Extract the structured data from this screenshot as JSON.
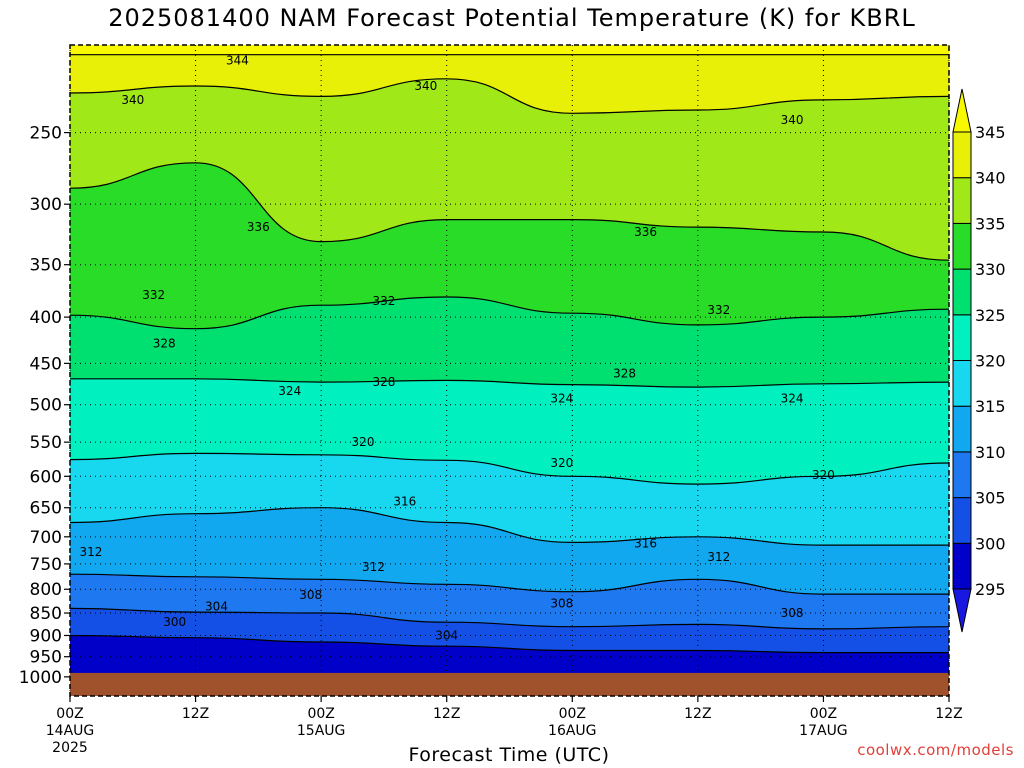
{
  "chart_data": {
    "type": "heatmap",
    "title": "2025081400 NAM Forecast Potential Temperature (K) for KBRL",
    "xlabel": "Forecast Time (UTC)",
    "ylabel": "",
    "credit": "coolwx.com/models",
    "y_axis": {
      "scale": "log-pressure",
      "reversed": true,
      "range": [
        1050,
        200
      ],
      "ticks": [
        250,
        300,
        350,
        400,
        450,
        500,
        550,
        600,
        650,
        700,
        750,
        800,
        850,
        900,
        950,
        1000
      ]
    },
    "x_axis": {
      "range_hours": [
        0,
        84
      ],
      "ticks": [
        {
          "hour": 0,
          "lines": [
            "00Z",
            "14AUG",
            "2025"
          ]
        },
        {
          "hour": 12,
          "lines": [
            "12Z"
          ]
        },
        {
          "hour": 24,
          "lines": [
            "00Z",
            "15AUG"
          ]
        },
        {
          "hour": 36,
          "lines": [
            "12Z"
          ]
        },
        {
          "hour": 48,
          "lines": [
            "00Z",
            "16AUG"
          ]
        },
        {
          "hour": 60,
          "lines": [
            "12Z"
          ]
        },
        {
          "hour": 72,
          "lines": [
            "00Z",
            "17AUG"
          ]
        },
        {
          "hour": 84,
          "lines": [
            "12Z"
          ]
        }
      ]
    },
    "grid": true,
    "ground_level_hPa": 990,
    "colorbar": {
      "levels": [
        295,
        300,
        305,
        310,
        315,
        320,
        325,
        330,
        335,
        340,
        345
      ],
      "colors": [
        "#1818e0",
        "#0000c8",
        "#1450e6",
        "#1e78f0",
        "#12a8f0",
        "#18d8f0",
        "#00f0c0",
        "#00e070",
        "#28dc28",
        "#a0e818",
        "#e8f008",
        "#f8f800"
      ],
      "extend": "both"
    },
    "contour_interval_K": 4,
    "contour_labels": [
      {
        "value": 344,
        "hour": 16,
        "p": 208
      },
      {
        "value": 340,
        "hour": 6,
        "p": 230
      },
      {
        "value": 340,
        "hour": 34,
        "p": 222
      },
      {
        "value": 340,
        "hour": 69,
        "p": 242
      },
      {
        "value": 336,
        "hour": 18,
        "p": 318
      },
      {
        "value": 336,
        "hour": 55,
        "p": 322
      },
      {
        "value": 332,
        "hour": 8,
        "p": 378
      },
      {
        "value": 332,
        "hour": 30,
        "p": 384
      },
      {
        "value": 332,
        "hour": 62,
        "p": 393
      },
      {
        "value": 328,
        "hour": 9,
        "p": 428
      },
      {
        "value": 328,
        "hour": 30,
        "p": 472
      },
      {
        "value": 328,
        "hour": 53,
        "p": 462
      },
      {
        "value": 324,
        "hour": 21,
        "p": 483
      },
      {
        "value": 324,
        "hour": 47,
        "p": 492
      },
      {
        "value": 324,
        "hour": 69,
        "p": 492
      },
      {
        "value": 320,
        "hour": 28,
        "p": 550
      },
      {
        "value": 320,
        "hour": 47,
        "p": 580
      },
      {
        "value": 320,
        "hour": 72,
        "p": 598
      },
      {
        "value": 316,
        "hour": 32,
        "p": 640
      },
      {
        "value": 316,
        "hour": 55,
        "p": 712
      },
      {
        "value": 312,
        "hour": 2,
        "p": 728
      },
      {
        "value": 312,
        "hour": 29,
        "p": 756
      },
      {
        "value": 312,
        "hour": 62,
        "p": 737
      },
      {
        "value": 308,
        "hour": 23,
        "p": 812
      },
      {
        "value": 308,
        "hour": 47,
        "p": 830
      },
      {
        "value": 308,
        "hour": 69,
        "p": 850
      },
      {
        "value": 304,
        "hour": 14,
        "p": 836
      },
      {
        "value": 304,
        "hour": 36,
        "p": 900
      },
      {
        "value": 300,
        "hour": 10,
        "p": 870
      }
    ],
    "isentrope_profiles": [
      {
        "value": 345,
        "p": [
          205,
          205,
          205,
          205,
          205,
          205,
          205,
          205
        ]
      },
      {
        "value": 340,
        "p": [
          226,
          222,
          228,
          218,
          238,
          236,
          230,
          228
        ]
      },
      {
        "value": 335,
        "p": [
          288,
          270,
          330,
          312,
          312,
          318,
          322,
          346
        ]
      },
      {
        "value": 330,
        "p": [
          398,
          412,
          388,
          380,
          396,
          408,
          400,
          392
        ]
      },
      {
        "value": 325,
        "p": [
          468,
          468,
          472,
          470,
          475,
          478,
          474,
          472
        ]
      },
      {
        "value": 320,
        "p": [
          575,
          566,
          568,
          576,
          600,
          612,
          600,
          580
        ]
      },
      {
        "value": 315,
        "p": [
          675,
          660,
          650,
          675,
          710,
          700,
          715,
          715
        ]
      },
      {
        "value": 310,
        "p": [
          770,
          775,
          780,
          790,
          805,
          780,
          810,
          810
        ]
      },
      {
        "value": 305,
        "p": [
          840,
          848,
          850,
          870,
          880,
          875,
          885,
          880
        ]
      },
      {
        "value": 300,
        "p": [
          900,
          905,
          915,
          925,
          935,
          935,
          940,
          940
        ]
      }
    ]
  }
}
